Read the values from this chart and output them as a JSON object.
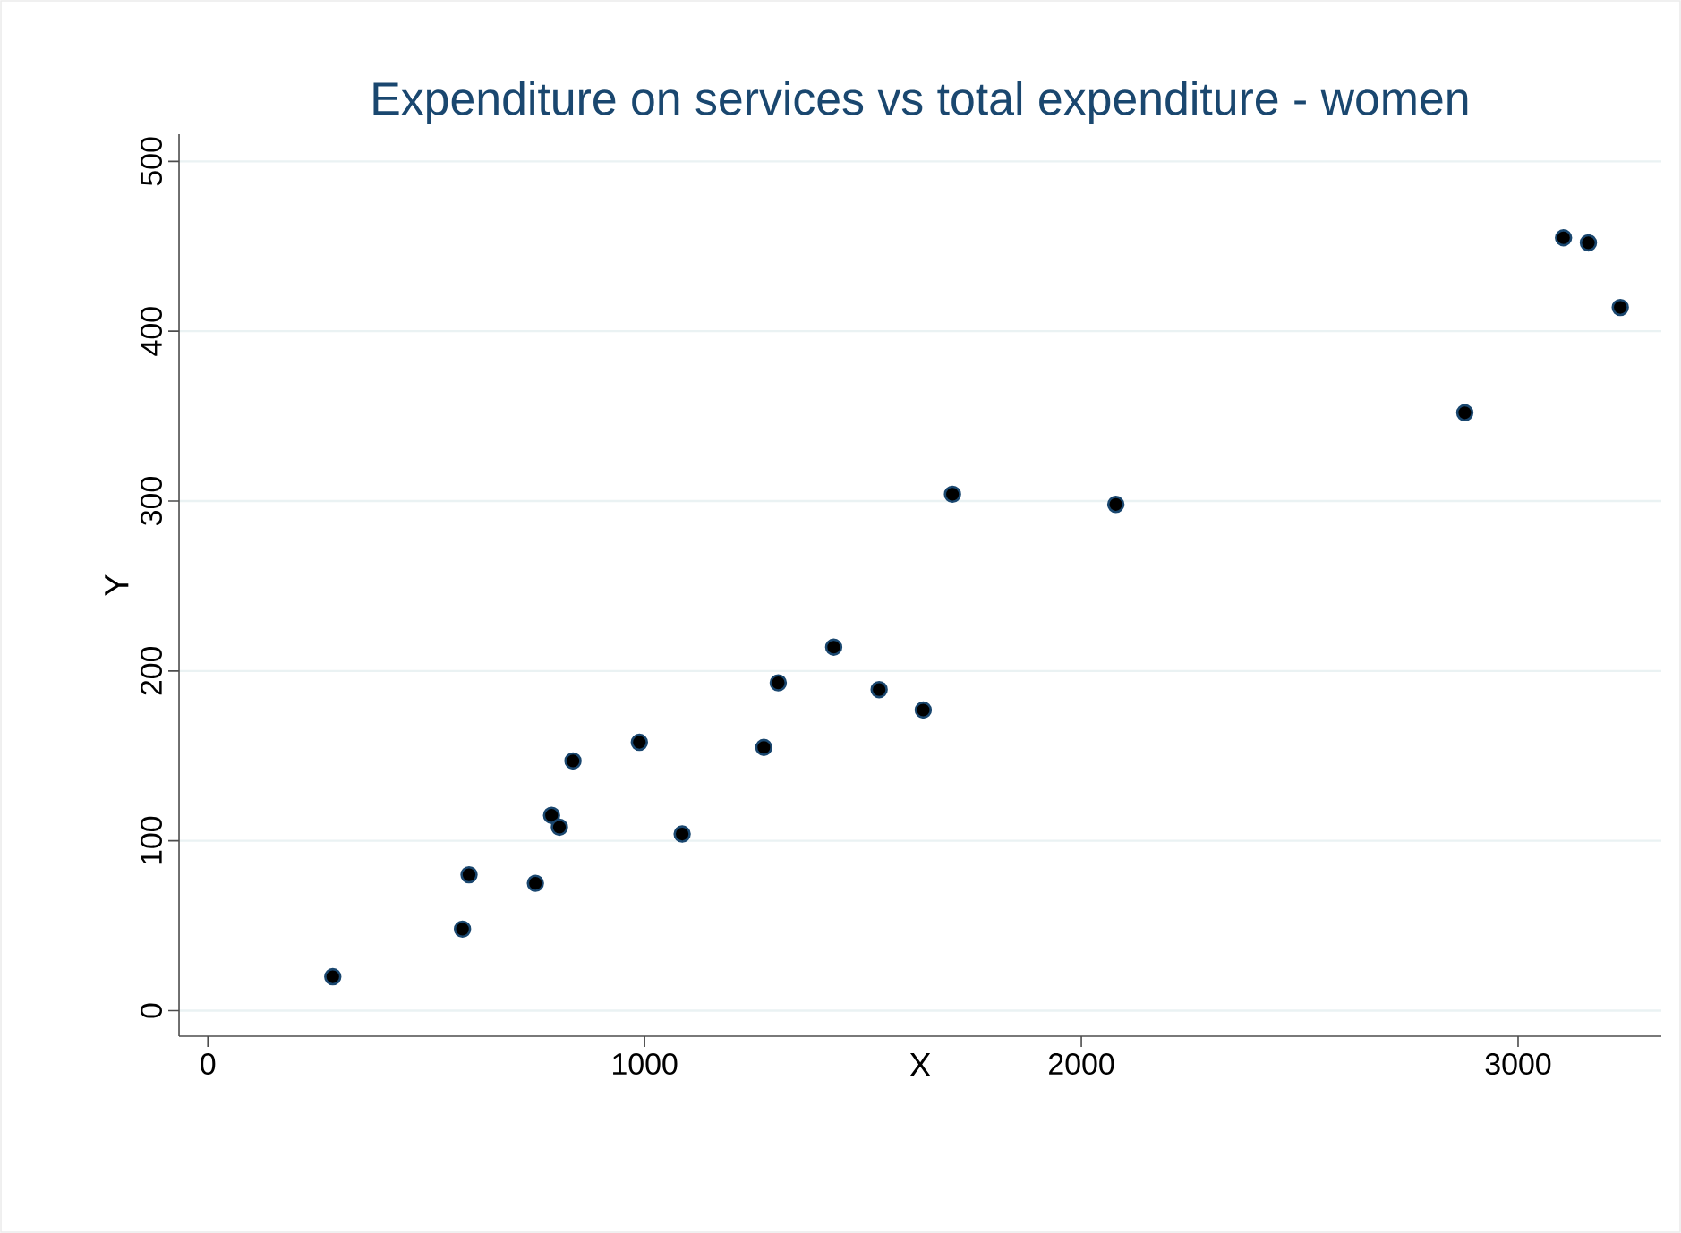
{
  "chart_data": {
    "type": "scatter",
    "title": "Expenditure on services vs total expenditure - women",
    "xlabel": "X",
    "ylabel": "Y",
    "x": [
      286,
      583,
      598,
      750,
      787,
      805,
      836,
      988,
      1086,
      1273,
      1306,
      1433,
      1537,
      1638,
      1705,
      2079,
      2878,
      3104,
      3161,
      3234
    ],
    "values": [
      20,
      48,
      80,
      75,
      115,
      108,
      147,
      158,
      104,
      155,
      193,
      214,
      189,
      177,
      304,
      298,
      352,
      455,
      452,
      414
    ],
    "color": "#000000",
    "marker": "circle",
    "xlim": [
      -66,
      3328
    ],
    "ylim": [
      -15,
      516
    ],
    "xticks": [
      0,
      1000,
      2000,
      3000
    ],
    "yticks": [
      0,
      100,
      200,
      300,
      400,
      500
    ],
    "grid": "y"
  }
}
